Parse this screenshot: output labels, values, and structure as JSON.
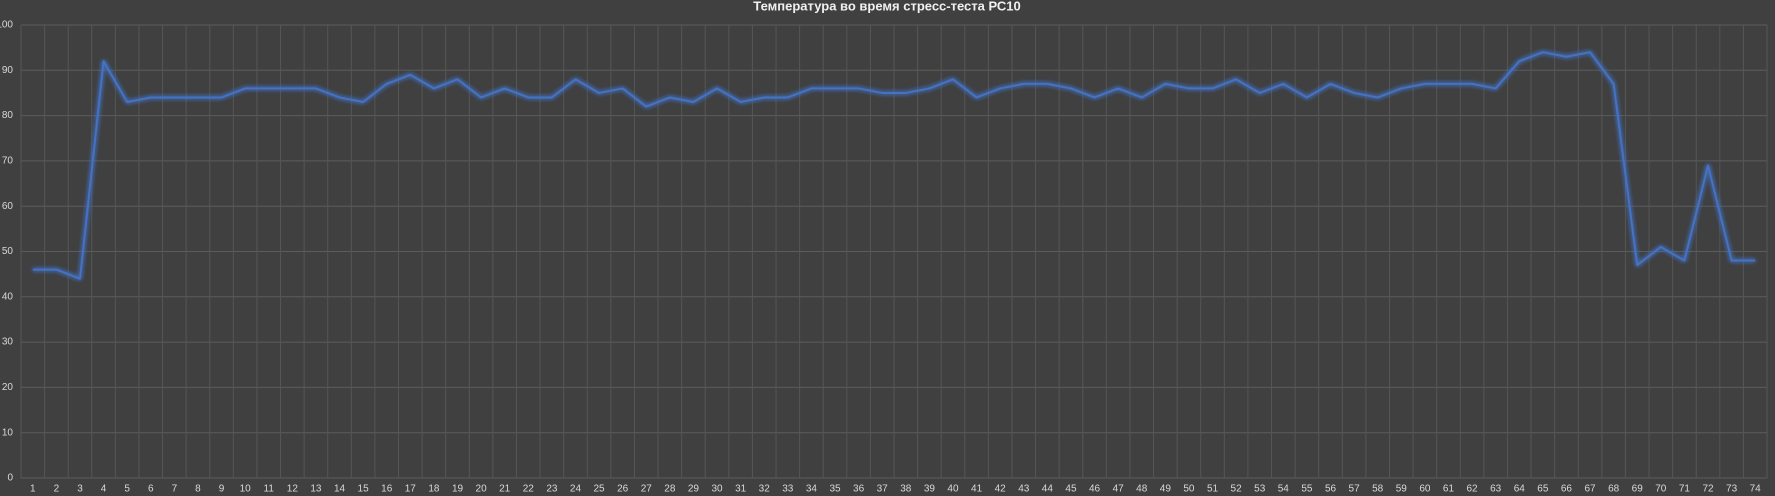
{
  "chart_data": {
    "type": "line",
    "title": "Температура во время стресс-теста РС10",
    "categories": [
      "1",
      "2",
      "3",
      "4",
      "5",
      "6",
      "7",
      "8",
      "9",
      "10",
      "11",
      "12",
      "13",
      "14",
      "15",
      "16",
      "17",
      "18",
      "19",
      "20",
      "21",
      "22",
      "23",
      "24",
      "25",
      "26",
      "27",
      "28",
      "29",
      "30",
      "31",
      "32",
      "33",
      "34",
      "35",
      "36",
      "37",
      "38",
      "39",
      "40",
      "41",
      "42",
      "43",
      "44",
      "45",
      "46",
      "47",
      "48",
      "49",
      "50",
      "51",
      "52",
      "53",
      "54",
      "55",
      "56",
      "57",
      "58",
      "59",
      "60",
      "61",
      "62",
      "63",
      "64",
      "65",
      "66",
      "67",
      "68",
      "69",
      "70",
      "71",
      "72",
      "73",
      "74"
    ],
    "values": [
      46,
      46,
      44,
      92,
      83,
      84,
      84,
      84,
      84,
      86,
      86,
      86,
      86,
      84,
      83,
      87,
      89,
      86,
      88,
      84,
      86,
      84,
      84,
      88,
      85,
      86,
      82,
      84,
      83,
      86,
      83,
      84,
      84,
      86,
      86,
      86,
      85,
      85,
      86,
      88,
      84,
      86,
      87,
      87,
      86,
      84,
      86,
      84,
      87,
      86,
      86,
      88,
      85,
      87,
      84,
      87,
      85,
      84,
      86,
      87,
      87,
      87,
      86,
      92,
      94,
      93,
      94,
      87,
      47,
      51,
      48,
      69,
      48,
      48
    ],
    "color": "#4472c4",
    "ylim": [
      0,
      100
    ],
    "yticks": [
      0,
      10,
      20,
      30,
      40,
      50,
      60,
      70,
      80,
      90,
      100
    ],
    "grid": true
  }
}
